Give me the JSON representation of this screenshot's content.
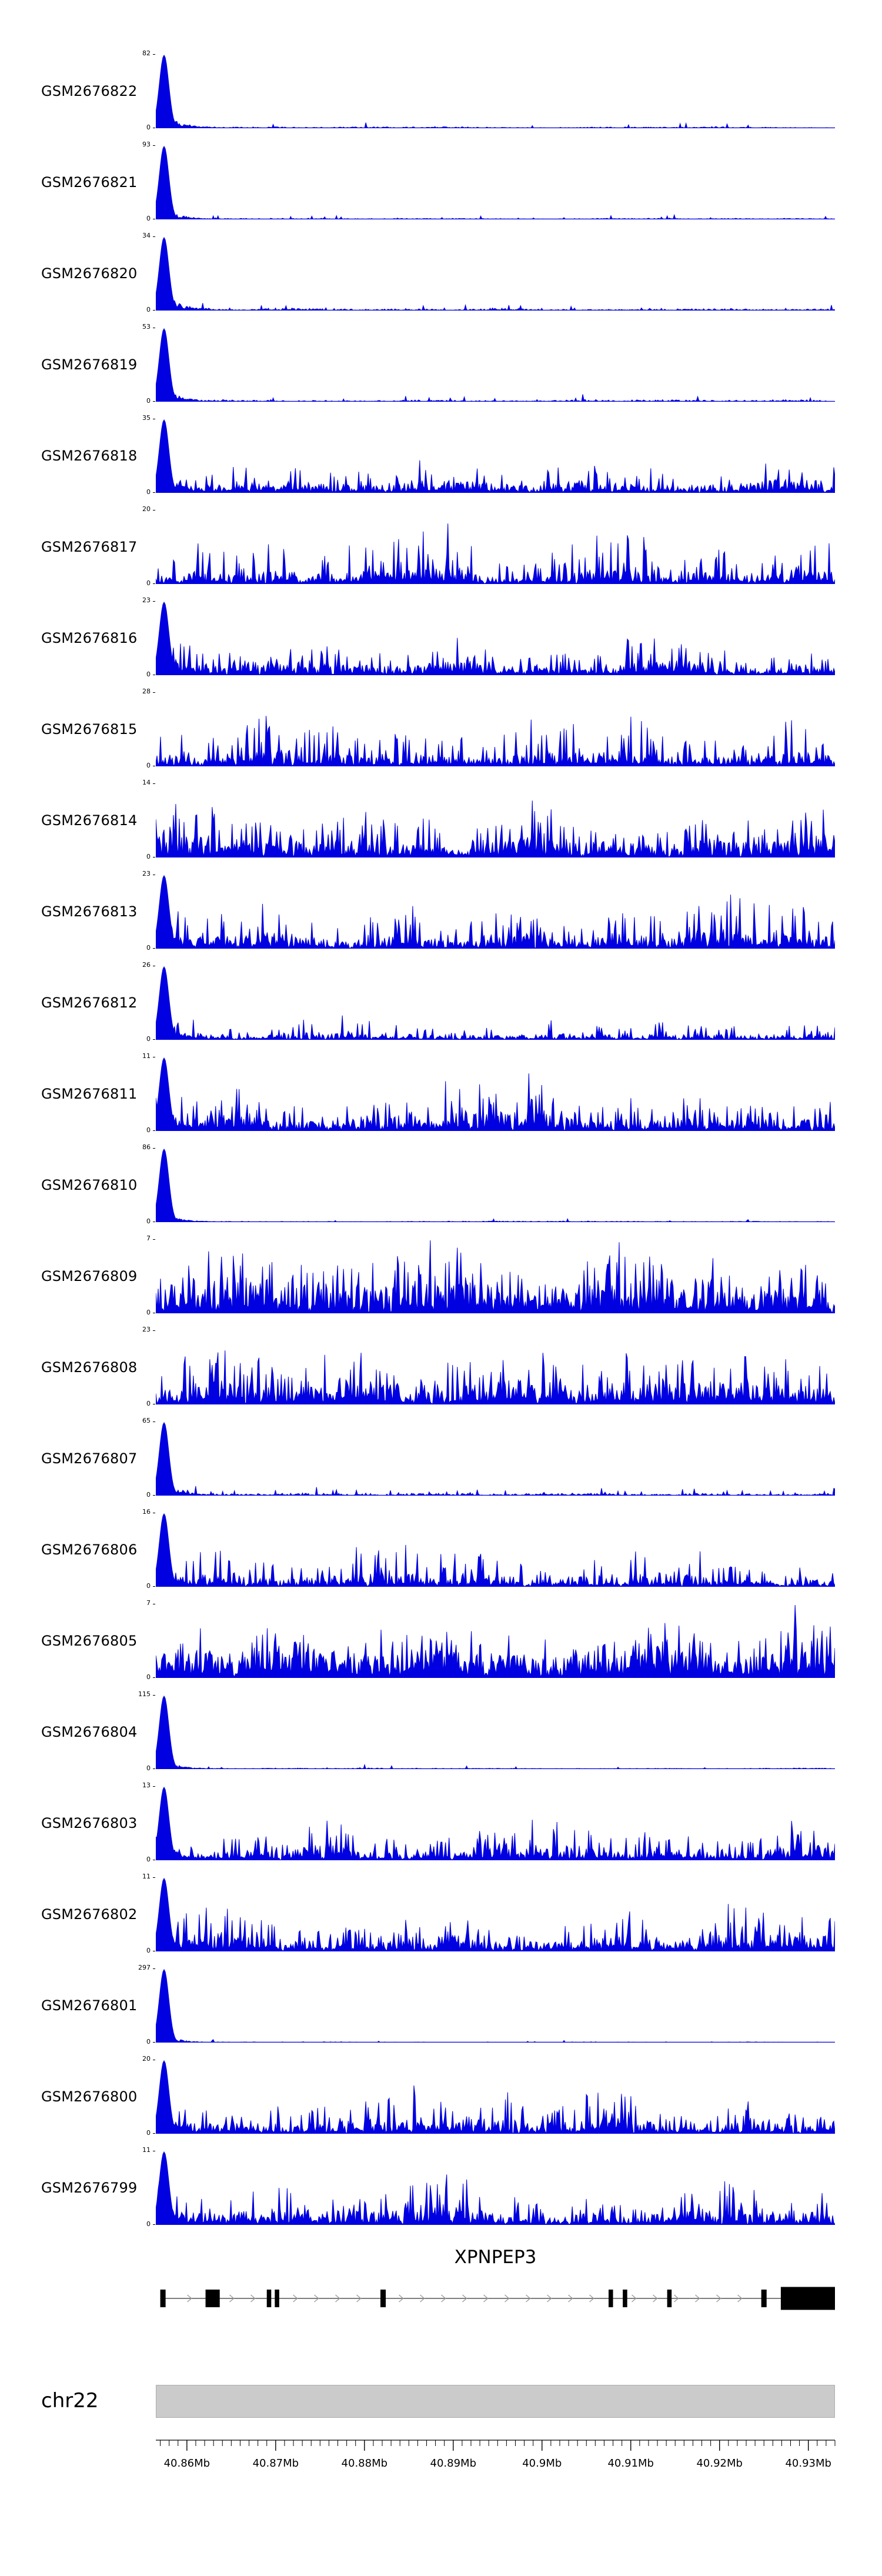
{
  "chart_data": {
    "type": "area",
    "description": "Genome browser coverage tracks over the XPNPEP3 locus on chr22",
    "signal_color": "#0000e0",
    "region": {
      "chrom": "chr22",
      "start_mb": 40.8565,
      "end_mb": 40.933
    },
    "y_zero_label": "0",
    "tracks": [
      {
        "label": "GSM2676822",
        "ymax": "82",
        "left_peak": true,
        "tail": 0.22,
        "base": 0.012,
        "spike_prob": 0.025,
        "spike_amp": 0.1,
        "seed": 101
      },
      {
        "label": "GSM2676821",
        "ymax": "93",
        "left_peak": true,
        "tail": 0.15,
        "base": 0.008,
        "spike_prob": 0.02,
        "spike_amp": 0.06,
        "seed": 102
      },
      {
        "label": "GSM2676820",
        "ymax": "34",
        "left_peak": true,
        "tail": 0.25,
        "base": 0.02,
        "spike_prob": 0.05,
        "spike_amp": 0.12,
        "seed": 103
      },
      {
        "label": "GSM2676819",
        "ymax": "53",
        "left_peak": true,
        "tail": 0.2,
        "base": 0.015,
        "spike_prob": 0.04,
        "spike_amp": 0.1,
        "seed": 104
      },
      {
        "label": "GSM2676818",
        "ymax": "35",
        "left_peak": true,
        "tail": 0.3,
        "base": 0.09,
        "spike_prob": 0.12,
        "spike_amp": 0.35,
        "seed": 105
      },
      {
        "label": "GSM2676817",
        "ymax": "20",
        "left_peak": false,
        "tail": 0,
        "base": 0.12,
        "spike_prob": 0.2,
        "spike_amp": 0.75,
        "seed": 106
      },
      {
        "label": "GSM2676816",
        "ymax": "23",
        "left_peak": true,
        "tail": 0.3,
        "base": 0.12,
        "spike_prob": 0.18,
        "spike_amp": 0.5,
        "seed": 107
      },
      {
        "label": "GSM2676815",
        "ymax": "28",
        "left_peak": false,
        "tail": 0,
        "base": 0.12,
        "spike_prob": 0.2,
        "spike_amp": 0.65,
        "seed": 108
      },
      {
        "label": "GSM2676814",
        "ymax": "14",
        "left_peak": false,
        "tail": 0,
        "base": 0.18,
        "spike_prob": 0.25,
        "spike_amp": 0.6,
        "seed": 109
      },
      {
        "label": "GSM2676813",
        "ymax": "23",
        "left_peak": true,
        "tail": 0.3,
        "base": 0.12,
        "spike_prob": 0.2,
        "spike_amp": 0.55,
        "seed": 110
      },
      {
        "label": "GSM2676812",
        "ymax": "26",
        "left_peak": true,
        "tail": 0.25,
        "base": 0.06,
        "spike_prob": 0.12,
        "spike_amp": 0.3,
        "seed": 111
      },
      {
        "label": "GSM2676811",
        "ymax": "11",
        "left_peak": true,
        "tail": 0.3,
        "base": 0.15,
        "spike_prob": 0.2,
        "spike_amp": 0.55,
        "seed": 112
      },
      {
        "label": "GSM2676810",
        "ymax": "86",
        "left_peak": true,
        "tail": 0.12,
        "base": 0.008,
        "spike_prob": 0.02,
        "spike_amp": 0.05,
        "seed": 113
      },
      {
        "label": "GSM2676809",
        "ymax": "7",
        "left_peak": false,
        "tail": 0,
        "base": 0.25,
        "spike_prob": 0.3,
        "spike_amp": 0.7,
        "seed": 114
      },
      {
        "label": "GSM2676808",
        "ymax": "23",
        "left_peak": false,
        "tail": 0,
        "base": 0.18,
        "spike_prob": 0.25,
        "spike_amp": 0.65,
        "seed": 115
      },
      {
        "label": "GSM2676807",
        "ymax": "65",
        "left_peak": true,
        "tail": 0.2,
        "base": 0.02,
        "spike_prob": 0.06,
        "spike_amp": 0.12,
        "seed": 116
      },
      {
        "label": "GSM2676806",
        "ymax": "16",
        "left_peak": true,
        "tail": 0.25,
        "base": 0.1,
        "spike_prob": 0.15,
        "spike_amp": 0.5,
        "seed": 117
      },
      {
        "label": "GSM2676805",
        "ymax": "7",
        "left_peak": false,
        "tail": 0,
        "base": 0.3,
        "spike_prob": 0.35,
        "spike_amp": 0.65,
        "seed": 118
      },
      {
        "label": "GSM2676804",
        "ymax": "115",
        "left_peak": true,
        "tail": 0.12,
        "base": 0.008,
        "spike_prob": 0.02,
        "spike_amp": 0.06,
        "seed": 119
      },
      {
        "label": "GSM2676803",
        "ymax": "13",
        "left_peak": true,
        "tail": 0.3,
        "base": 0.12,
        "spike_prob": 0.18,
        "spike_amp": 0.45,
        "seed": 120
      },
      {
        "label": "GSM2676802",
        "ymax": "11",
        "left_peak": true,
        "tail": 0.3,
        "base": 0.15,
        "spike_prob": 0.2,
        "spike_amp": 0.55,
        "seed": 121
      },
      {
        "label": "GSM2676801",
        "ymax": "297",
        "left_peak": true,
        "tail": 0.1,
        "base": 0.006,
        "spike_prob": 0.015,
        "spike_amp": 0.05,
        "seed": 122
      },
      {
        "label": "GSM2676800",
        "ymax": "20",
        "left_peak": true,
        "tail": 0.3,
        "base": 0.12,
        "spike_prob": 0.18,
        "spike_amp": 0.5,
        "seed": 123
      },
      {
        "label": "GSM2676799",
        "ymax": "11",
        "left_peak": true,
        "tail": 0.3,
        "base": 0.15,
        "spike_prob": 0.2,
        "spike_amp": 0.55,
        "seed": 124
      }
    ],
    "gene": {
      "name": "XPNPEP3",
      "strand": "forward",
      "start_mb": 40.857,
      "end_mb": 40.933,
      "exons": [
        {
          "start_mb": 40.857,
          "end_mb": 40.8576,
          "h": 1
        },
        {
          "start_mb": 40.8621,
          "end_mb": 40.8637,
          "h": 1
        },
        {
          "start_mb": 40.869,
          "end_mb": 40.8695,
          "h": 1
        },
        {
          "start_mb": 40.8699,
          "end_mb": 40.8704,
          "h": 1
        },
        {
          "start_mb": 40.8818,
          "end_mb": 40.8824,
          "h": 1
        },
        {
          "start_mb": 40.9075,
          "end_mb": 40.908,
          "h": 1
        },
        {
          "start_mb": 40.9091,
          "end_mb": 40.9096,
          "h": 1
        },
        {
          "start_mb": 40.9141,
          "end_mb": 40.9146,
          "h": 1
        },
        {
          "start_mb": 40.9247,
          "end_mb": 40.9253,
          "h": 1
        },
        {
          "start_mb": 40.9269,
          "end_mb": 40.933,
          "h": 1.3
        }
      ]
    },
    "chromosome": {
      "label": "chr22",
      "bar_color": "#cbcbcb"
    },
    "x_axis": {
      "tick_values_mb": [
        40.86,
        40.87,
        40.88,
        40.89,
        40.9,
        40.91,
        40.92,
        40.93
      ],
      "tick_labels": [
        "40.86Mb",
        "40.87Mb",
        "40.88Mb",
        "40.89Mb",
        "40.9Mb",
        "40.91Mb",
        "40.92Mb",
        "40.93Mb"
      ],
      "minor_interval_mb": 0.001
    }
  }
}
